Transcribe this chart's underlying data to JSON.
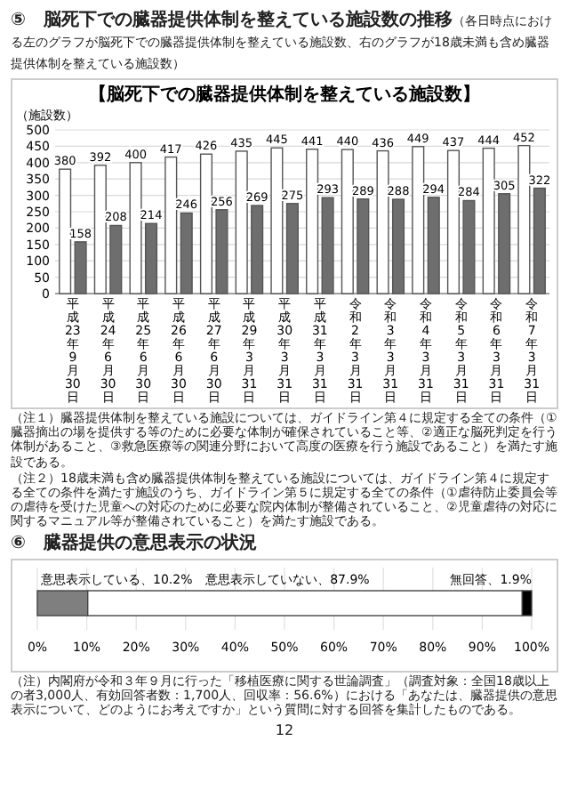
{
  "chart_data": [
    {
      "type": "bar",
      "title": "⑤　脳死下での臓器提供体制を整えている施設数の推移",
      "subtitle": "（各日時点における左のグラフが脳死下での臓器提供体制を整えている施設数、右のグラフが18歳未満も含め臓器提供体制を整えている施設数）",
      "ylabel": "（施設数）",
      "categories": [
        "平成23年9月30日",
        "平成24年6月30日",
        "平成25年6月30日",
        "平成26年6月30日",
        "平成27年6月30日",
        "平成29年3月31日",
        "平成30年3月31日",
        "平成31年3月31日",
        "令和2年3月31日",
        "令和3年3月31日",
        "令和4年3月31日",
        "令和5年3月31日",
        "令和6年3月31日",
        "令和7年3月31日"
      ],
      "series": [
        {
          "color": "#ffffff",
          "values": [
            380,
            392,
            400,
            417,
            426,
            435,
            445,
            441,
            440,
            436,
            449,
            437,
            444,
            452
          ]
        },
        {
          "color": "#6e6e6e",
          "values": [
            158,
            208,
            214,
            246,
            256,
            269,
            275,
            293,
            289,
            288,
            294,
            284,
            305,
            322
          ]
        }
      ],
      "ylim": [
        0,
        500
      ],
      "yticks": [
        0,
        50,
        100,
        150,
        200,
        250,
        300,
        350,
        400,
        450,
        500
      ],
      "grid": "y",
      "data_labels": true,
      "annotations": [
        "【脳死下での臓器提供体制を整えている施設数】",
        "（注１）臓器提供体制を整えている施設については、ガイドライン第４に規定する全ての条件（①臓器摘出の場を提供する等のために必要な体制が確保されていること等、②適正な脳死判定を行う体制があること、③救急医療等の関連分野において高度の医療を行う施設であること）を満たす施設である。",
        "（注２）18歳未満も含め臓器提供体制を整えている施設については、ガイドライン第４に規定する全ての条件を満たす施設のうち、ガイドライン第５に規定する全ての条件（①虐待防止委員会等の虐待を受けた児童への対応のために必要な院内体制が整備されていること、②児童虐待の対応に関するマニュアル等が整備されていること）を満たす施設である。"
      ]
    },
    {
      "type": "bar",
      "orientation": "horizontal",
      "stacked": true,
      "title": "⑥　臓器提供の意思表示の状況",
      "categories": [
        null
      ],
      "series": [
        {
          "color": "#7f7f7f",
          "values": [
            10.2
          ],
          "value_labels": [
            "意思表示している、10.2%"
          ]
        },
        {
          "color": "#ffffff",
          "values": [
            87.9
          ],
          "value_labels": [
            "意思表示していない、87.9%"
          ]
        },
        {
          "color": "#000000",
          "values": [
            1.9
          ],
          "value_labels": [
            "無回答、1.9%"
          ]
        }
      ],
      "xlim": [
        0,
        100
      ],
      "xticks": [
        {
          "value": 0,
          "label": "0%"
        },
        {
          "value": 10,
          "label": "10%"
        },
        {
          "value": 20,
          "label": "20%"
        },
        {
          "value": 30,
          "label": "30%"
        },
        {
          "value": 40,
          "label": "40%"
        },
        {
          "value": 50,
          "label": "50%"
        },
        {
          "value": 60,
          "label": "60%"
        },
        {
          "value": 70,
          "label": "70%"
        },
        {
          "value": 80,
          "label": "80%"
        },
        {
          "value": 90,
          "label": "90%"
        },
        {
          "value": 100,
          "label": "100%"
        }
      ],
      "grid": "x",
      "annotations": [
        "（注）内閣府が令和３年９月に行った「移植医療に関する世論調査」（調査対象：全国18歳以上の者3,000人、有効回答者数：1,700人、回収率：56.6%）における「あなたは、臓器提供の意思表示について、どのようにお考えですか」という質問に対する回答を集計したものである。",
        "12"
      ]
    }
  ]
}
